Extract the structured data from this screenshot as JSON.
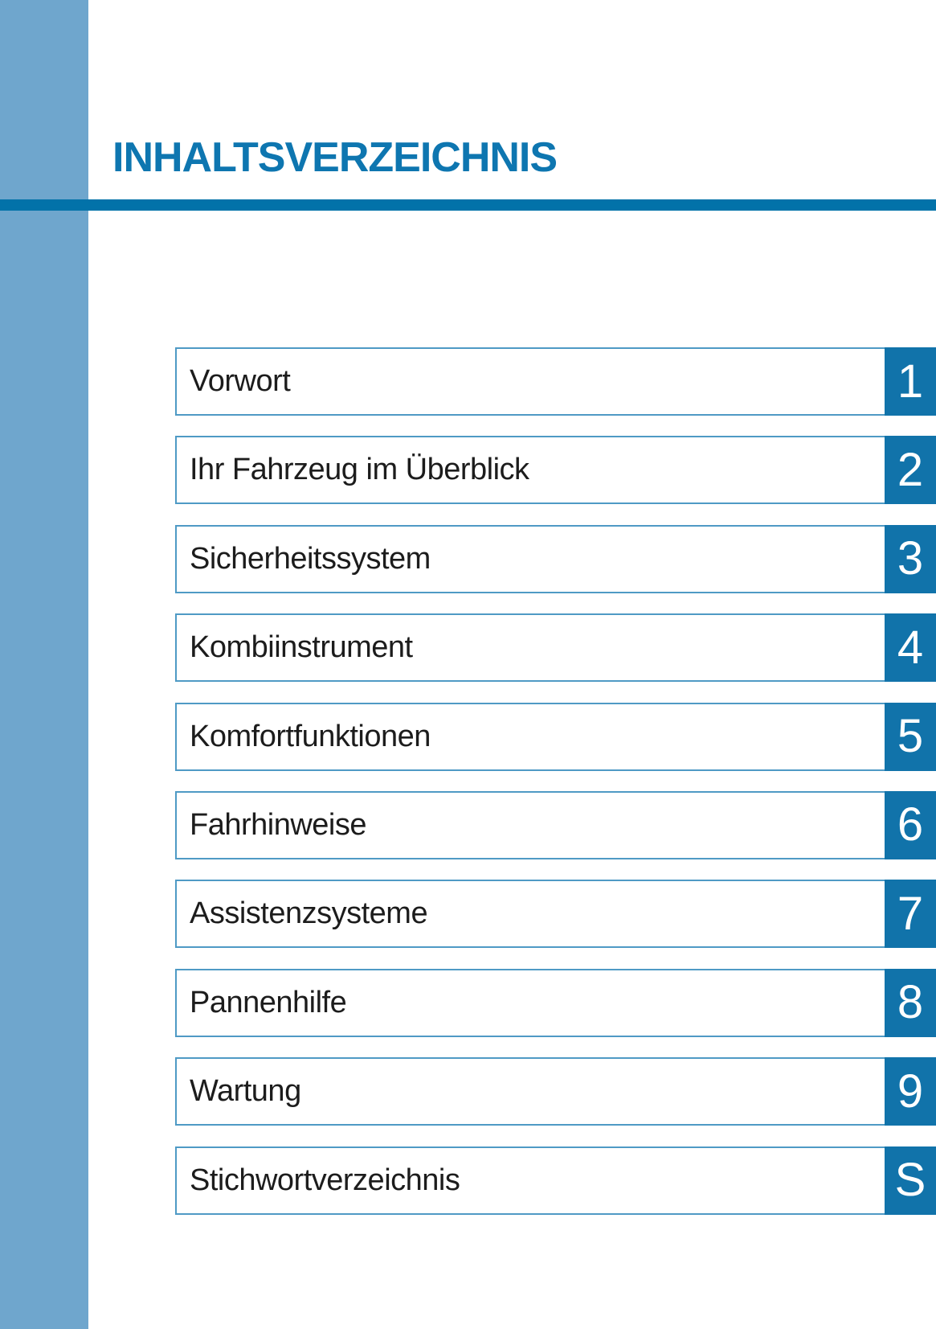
{
  "page": {
    "title": "INHALTSVERZEICHNIS"
  },
  "toc": {
    "items": [
      {
        "label": "Vorwort",
        "tab": "1"
      },
      {
        "label": "Ihr Fahrzeug im Überblick",
        "tab": "2"
      },
      {
        "label": "Sicherheitssystem",
        "tab": "3"
      },
      {
        "label": "Kombiinstrument",
        "tab": "4"
      },
      {
        "label": "Komfortfunktionen",
        "tab": "5"
      },
      {
        "label": "Fahrhinweise",
        "tab": "6"
      },
      {
        "label": "Assistenzsysteme",
        "tab": "7"
      },
      {
        "label": "Pannenhilfe",
        "tab": "8"
      },
      {
        "label": "Wartung",
        "tab": "9"
      },
      {
        "label": "Stichwortverzeichnis",
        "tab": "S"
      }
    ]
  },
  "colors": {
    "sidebar": "#6FA6CD",
    "divider": "#0272A9",
    "title": "#0E76B0",
    "tab_bg": "#1173AA",
    "row_border": "#4F9AC5",
    "row_text": "#1C1C1C"
  }
}
